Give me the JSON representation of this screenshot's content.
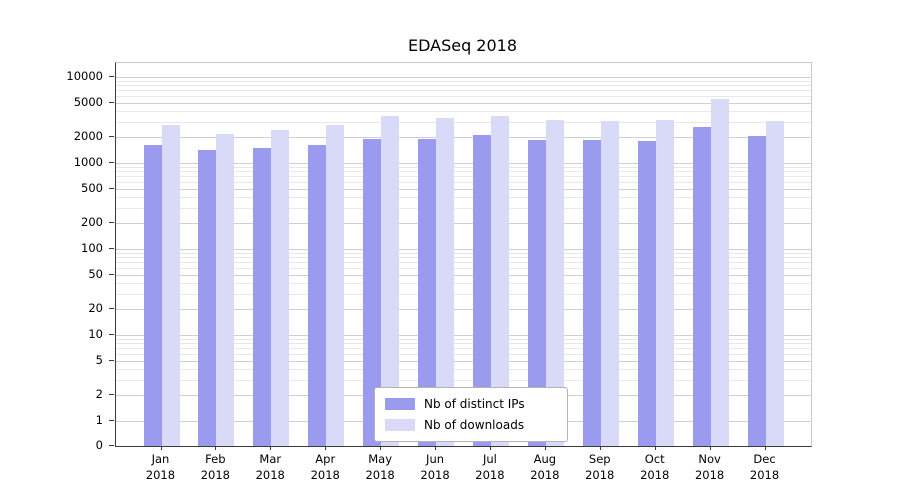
{
  "chart_data": {
    "type": "bar",
    "title": "EDASeq 2018",
    "categories": [
      "Jan",
      "Feb",
      "Mar",
      "Apr",
      "May",
      "Jun",
      "Jul",
      "Aug",
      "Sep",
      "Oct",
      "Nov",
      "Dec"
    ],
    "year": "2018",
    "series": [
      {
        "name": "Nb of distinct IPs",
        "color": "#9a9aee",
        "values": [
          1600,
          1400,
          1500,
          1600,
          1900,
          1900,
          2100,
          1850,
          1850,
          1800,
          2600,
          2050
        ]
      },
      {
        "name": "Nb of downloads",
        "color": "#d9d9f8",
        "values": [
          2800,
          2200,
          2450,
          2800,
          3500,
          3300,
          3500,
          3150,
          3050,
          3150,
          5500,
          3100
        ]
      }
    ],
    "yticks": [
      0,
      1,
      2,
      5,
      10,
      20,
      50,
      100,
      200,
      500,
      1000,
      2000,
      5000,
      10000
    ],
    "yscale": "log",
    "ylim": [
      0,
      15000
    ],
    "xlabel": "",
    "ylabel": "",
    "grid": "horizontal, log minor gridlines",
    "legend_position": "bottom-center"
  }
}
